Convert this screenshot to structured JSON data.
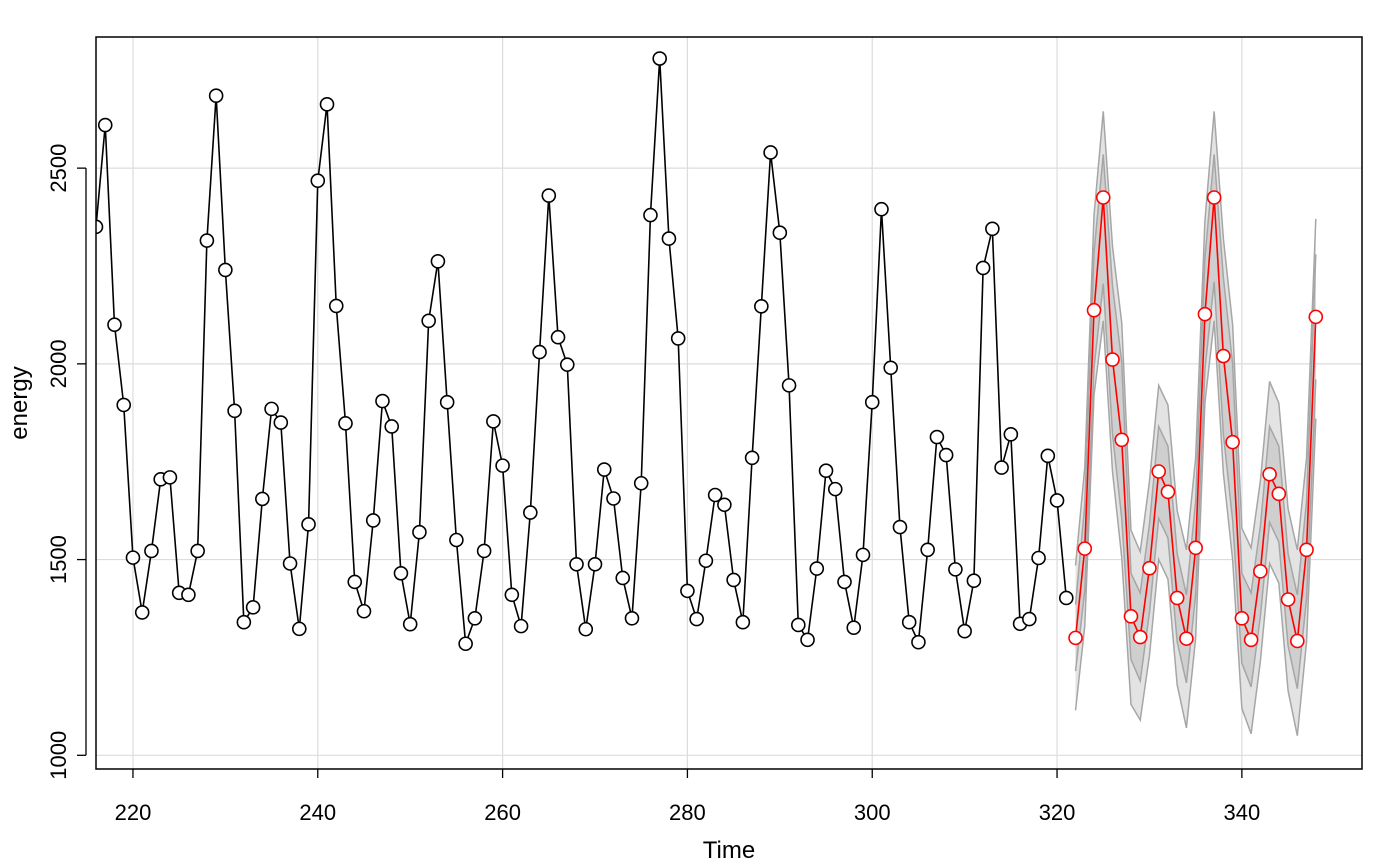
{
  "chart_data": {
    "type": "line",
    "title": "",
    "xlabel": "Time",
    "ylabel": "energy",
    "xlim": [
      216,
      353
    ],
    "ylim": [
      965,
      2835
    ],
    "xticks": [
      220,
      240,
      260,
      280,
      300,
      320,
      340
    ],
    "yticks": [
      1000,
      1500,
      2000,
      2500
    ],
    "grid": true,
    "legend": "none",
    "colors": {
      "observed": "#000000",
      "forecast": "#ff0000",
      "band_outer": "#e3e3e3",
      "band_inner": "#cfcfcf",
      "band_edge": "#a6a6a6",
      "grid": "#dcdcdc"
    },
    "series": [
      {
        "role": "observed",
        "x_start": 216,
        "values": [
          2350,
          2610,
          2100,
          1895,
          1505,
          1365,
          1522,
          1705,
          1710,
          1415,
          1410,
          1522,
          2315,
          2685,
          2240,
          1880,
          1340,
          1378,
          1655,
          1885,
          1850,
          1490,
          1323,
          1590,
          2468,
          2663,
          2148,
          1848,
          1443,
          1368,
          1600,
          1905,
          1840,
          1465,
          1335,
          1570,
          2110,
          2262,
          1902,
          1550,
          1285,
          1350,
          1522,
          1853,
          1740,
          1410,
          1330,
          1620,
          2030,
          2430,
          2068,
          1998,
          1488,
          1322,
          1488,
          1730,
          1656,
          1453,
          1350,
          1695,
          2380,
          2780,
          2320,
          2065,
          1420,
          1348,
          1497,
          1665,
          1640,
          1448,
          1340,
          1760,
          2147,
          2540,
          2335,
          1945,
          1333,
          1295,
          1477,
          1727,
          1680,
          1443,
          1326,
          1512,
          1902,
          2395,
          1990,
          1583,
          1340,
          1289,
          1525,
          1813,
          1767,
          1475,
          1317,
          1446,
          2245,
          2345,
          1735,
          1820,
          1336,
          1348,
          1504,
          1765,
          1651,
          1402
        ]
      },
      {
        "role": "forecast",
        "x_start": 322,
        "values": [
          1300,
          1528,
          2137,
          2425,
          2011,
          1806,
          1355,
          1302,
          1478,
          1725,
          1673,
          1402,
          1298,
          1530,
          2127,
          2425,
          2020,
          1800,
          1350,
          1295,
          1470,
          1718,
          1668,
          1398,
          1292,
          1525,
          2120
        ],
        "inner_band": {
          "lower": [
            1215,
            1420,
            1990,
            2205,
            1820,
            1605,
            1245,
            1190,
            1365,
            1605,
            1555,
            1290,
            1185,
            1410,
            1985,
            2210,
            1820,
            1600,
            1235,
            1175,
            1355,
            1595,
            1545,
            1280,
            1170,
            1400,
            1960
          ],
          "upper": [
            1385,
            1640,
            2285,
            2535,
            2200,
            2005,
            1465,
            1415,
            1590,
            1840,
            1790,
            1515,
            1410,
            1650,
            2270,
            2535,
            2220,
            2000,
            1465,
            1415,
            1585,
            1840,
            1790,
            1515,
            1410,
            1650,
            2280
          ]
        },
        "outer_band": {
          "lower": [
            1115,
            1330,
            1920,
            2110,
            1725,
            1505,
            1130,
            1090,
            1255,
            1500,
            1450,
            1180,
            1070,
            1300,
            1900,
            2110,
            1720,
            1500,
            1120,
            1055,
            1240,
            1490,
            1440,
            1165,
            1050,
            1290,
            1860
          ],
          "upper": [
            1485,
            1735,
            2380,
            2645,
            2300,
            2105,
            1575,
            1520,
            1700,
            1945,
            1895,
            1625,
            1525,
            1760,
            2365,
            2645,
            2320,
            2100,
            1580,
            1530,
            1700,
            1955,
            1900,
            1630,
            1525,
            1760,
            2370
          ]
        }
      }
    ]
  }
}
